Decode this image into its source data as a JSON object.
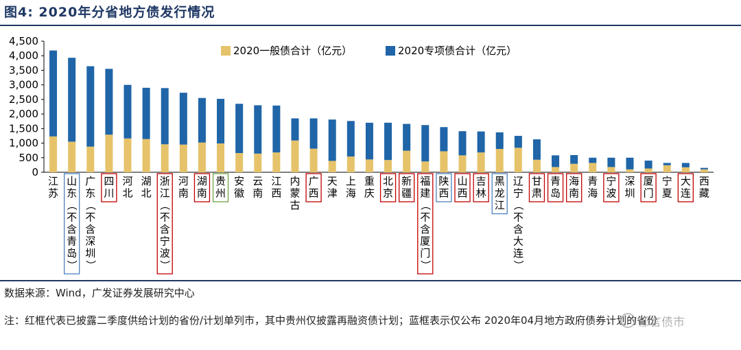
{
  "figure": {
    "title": "图4:  2020年分省地方债发行情况",
    "source": "数据来源：Wind，广发证券发展研究中心",
    "note": "注：红框代表已披露二季度供给计划的省份/计划单列市，其中贵州仅披露再融资债计划；蓝框表示仅公布 2020年04月地方政府债券计划的省份",
    "watermark": "郁言债市"
  },
  "colors": {
    "general": "#e6c36a",
    "special": "#1f65a8",
    "red_box": "#c00000",
    "blue_box": "#4f81bd",
    "green_box": "#70a040"
  },
  "chart_data": {
    "type": "bar",
    "stacked": true,
    "title": "图4:  2020年分省地方债发行情况",
    "xlabel": "",
    "ylabel": "",
    "ylim": [
      0,
      4500
    ],
    "yticks": [
      0,
      500,
      1000,
      1500,
      2000,
      2500,
      3000,
      3500,
      4000,
      4500
    ],
    "ytick_labels": [
      "0",
      "500",
      "1,000",
      "1,500",
      "2,000",
      "2,500",
      "3,000",
      "3,500",
      "4,000",
      "4,500"
    ],
    "grid": false,
    "legend_position": "top",
    "categories": [
      "江苏",
      "山东（不含青岛）",
      "广东（不含深圳）",
      "四川",
      "河北",
      "湖北",
      "浙江（不含宁波）",
      "河南",
      "湖南",
      "贵州",
      "安徽",
      "云南",
      "江西",
      "内蒙古",
      "广西",
      "天津",
      "上海",
      "重庆",
      "北京",
      "新疆",
      "福建（不含厦门）",
      "陕西",
      "山西",
      "吉林",
      "黑龙江",
      "辽宁（不含大连）",
      "甘肃",
      "青岛",
      "海南",
      "青海",
      "宁波",
      "深圳",
      "厦门",
      "宁夏",
      "大连",
      "西藏"
    ],
    "category_box": [
      "none",
      "blue",
      "none",
      "red",
      "none",
      "none",
      "red",
      "none",
      "red",
      "green",
      "none",
      "none",
      "none",
      "none",
      "red",
      "none",
      "none",
      "none",
      "red",
      "red",
      "red",
      "blue",
      "red",
      "red",
      "blue",
      "none",
      "red",
      "red",
      "red",
      "none",
      "red",
      "none",
      "red",
      "none",
      "red",
      "none"
    ],
    "series": [
      {
        "name": "2020一般债合计（亿元）",
        "color": "#e6c36a",
        "values": [
          1230,
          1050,
          880,
          1290,
          1160,
          1140,
          960,
          950,
          1020,
          990,
          660,
          640,
          680,
          1090,
          810,
          390,
          540,
          440,
          420,
          740,
          370,
          720,
          580,
          680,
          800,
          840,
          430,
          180,
          290,
          320,
          180,
          100,
          130,
          240,
          170,
          100
        ]
      },
      {
        "name": "2020专项债合计（亿元）",
        "color": "#1f65a8",
        "values": [
          2950,
          2880,
          2760,
          2260,
          1840,
          1760,
          1930,
          1780,
          1530,
          1530,
          1690,
          1660,
          1610,
          760,
          1040,
          1420,
          1220,
          1260,
          1280,
          920,
          1250,
          830,
          830,
          720,
          570,
          410,
          700,
          400,
          300,
          180,
          320,
          400,
          270,
          80,
          150,
          50
        ]
      }
    ]
  }
}
